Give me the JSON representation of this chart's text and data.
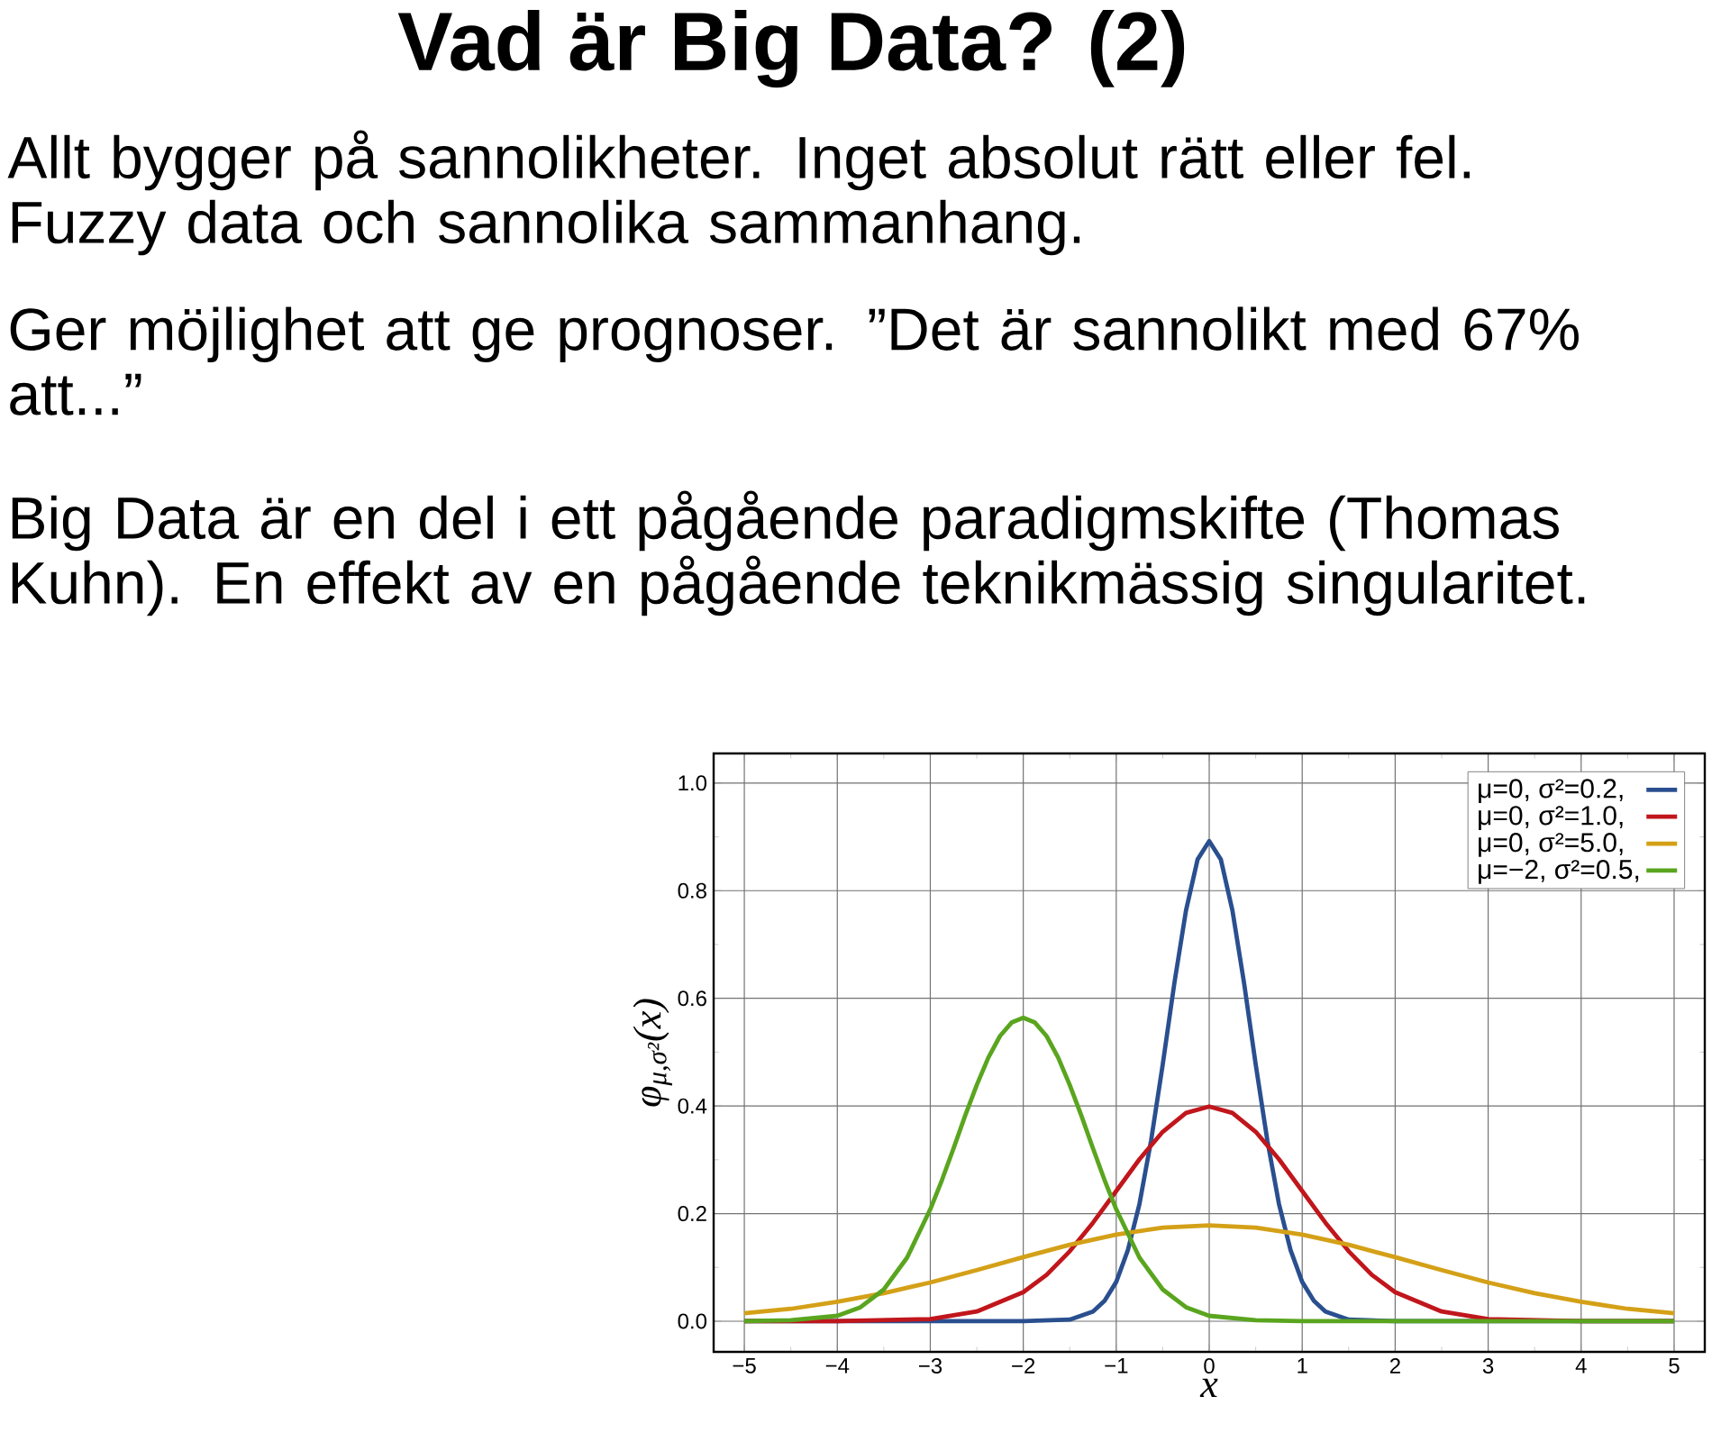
{
  "chart_data": {
    "type": "line",
    "title": "Vad är Big Data? (2)",
    "annotations": [
      "Allt bygger på sannolikheter. Inget absolut rätt eller fel. Fuzzy data och sannolika sammanhang.",
      "Ger möjlighet att ge prognoser. ”Det är sannolikt med 67% att...”",
      "Big Data är en del i ett pågående paradigmskifte (Thomas Kuhn). En effekt av en pågående teknikmässig singularitet."
    ],
    "xlabel": "x",
    "ylabel": "φ$_{μ,σ²}$(x)",
    "series": [
      {
        "name": "μ=0,   σ²=0.2,",
        "color": "#2a4f8f",
        "x": [
          -5,
          -2,
          -1.5,
          -1.25,
          -1.125,
          -1,
          -0.875,
          -0.75,
          -0.625,
          -0.5,
          -0.375,
          -0.25,
          -0.125,
          0,
          0.125,
          0.25,
          0.375,
          0.5,
          0.625,
          0.75,
          0.875,
          1,
          1.125,
          1.25,
          1.5,
          2,
          5
        ],
        "values": [
          0,
          0,
          0.003,
          0.018,
          0.038,
          0.073,
          0.132,
          0.218,
          0.336,
          0.477,
          0.628,
          0.763,
          0.858,
          0.892,
          0.858,
          0.763,
          0.628,
          0.477,
          0.336,
          0.218,
          0.132,
          0.073,
          0.038,
          0.018,
          0.003,
          0,
          0
        ]
      },
      {
        "name": "μ=0,   σ²=1.0,",
        "color": "#c0161c",
        "x": [
          -5,
          -4,
          -3,
          -2.5,
          -2,
          -1.75,
          -1.5,
          -1.25,
          -1,
          -0.75,
          -0.5,
          -0.25,
          0,
          0.25,
          0.5,
          0.75,
          1,
          1.25,
          1.5,
          1.75,
          2,
          2.5,
          3,
          4,
          5
        ],
        "values": [
          0,
          0,
          0.004,
          0.018,
          0.054,
          0.086,
          0.13,
          0.183,
          0.242,
          0.301,
          0.352,
          0.387,
          0.399,
          0.387,
          0.352,
          0.301,
          0.242,
          0.183,
          0.13,
          0.086,
          0.054,
          0.018,
          0.004,
          0,
          0
        ]
      },
      {
        "name": "μ=0,   σ²=5.0,",
        "color": "#d4a017",
        "x": [
          -5,
          -4.5,
          -4,
          -3.5,
          -3,
          -2.5,
          -2,
          -1.5,
          -1,
          -0.5,
          0,
          0.5,
          1,
          1.5,
          2,
          2.5,
          3,
          3.5,
          4,
          4.5,
          5
        ],
        "values": [
          0.015,
          0.023,
          0.036,
          0.052,
          0.072,
          0.095,
          0.119,
          0.142,
          0.161,
          0.174,
          0.178,
          0.174,
          0.161,
          0.142,
          0.119,
          0.095,
          0.072,
          0.052,
          0.036,
          0.023,
          0.015
        ]
      },
      {
        "name": "μ=−2, σ²=0.5,",
        "color": "#5aa51f",
        "x": [
          -5,
          -4.5,
          -4,
          -3.75,
          -3.5,
          -3.25,
          -3,
          -2.875,
          -2.75,
          -2.625,
          -2.5,
          -2.375,
          -2.25,
          -2.125,
          -2,
          -1.875,
          -1.75,
          -1.625,
          -1.5,
          -1.375,
          -1.25,
          -1.125,
          -1,
          -0.75,
          -0.5,
          -0.25,
          0,
          0.5,
          1,
          5
        ],
        "values": [
          0,
          0.002,
          0.01,
          0.026,
          0.059,
          0.118,
          0.208,
          0.262,
          0.321,
          0.382,
          0.439,
          0.49,
          0.53,
          0.555,
          0.564,
          0.555,
          0.53,
          0.49,
          0.439,
          0.382,
          0.321,
          0.262,
          0.208,
          0.118,
          0.059,
          0.026,
          0.01,
          0.002,
          0,
          0
        ]
      }
    ],
    "xlim": [
      -5.33,
      5.33
    ],
    "ylim": [
      -0.057,
      1.055
    ],
    "xticks": [
      {
        "value": -5,
        "label": "−5"
      },
      {
        "value": -4,
        "label": "−4"
      },
      {
        "value": -3,
        "label": "−3"
      },
      {
        "value": -2,
        "label": "−2"
      },
      {
        "value": -1,
        "label": "−1"
      },
      0,
      1,
      2,
      3,
      4,
      5
    ],
    "yticks": [
      {
        "value": 0,
        "label": "0.0"
      },
      {
        "value": 0.2,
        "label": "0.2"
      },
      {
        "value": 0.4,
        "label": "0.4"
      },
      {
        "value": 0.6,
        "label": "0.6"
      },
      {
        "value": 0.8,
        "label": "0.8"
      },
      {
        "value": 1.0,
        "label": "1.0"
      }
    ],
    "grid": true,
    "legend": "top right",
    "marker": "none",
    "line_style": "solid"
  }
}
